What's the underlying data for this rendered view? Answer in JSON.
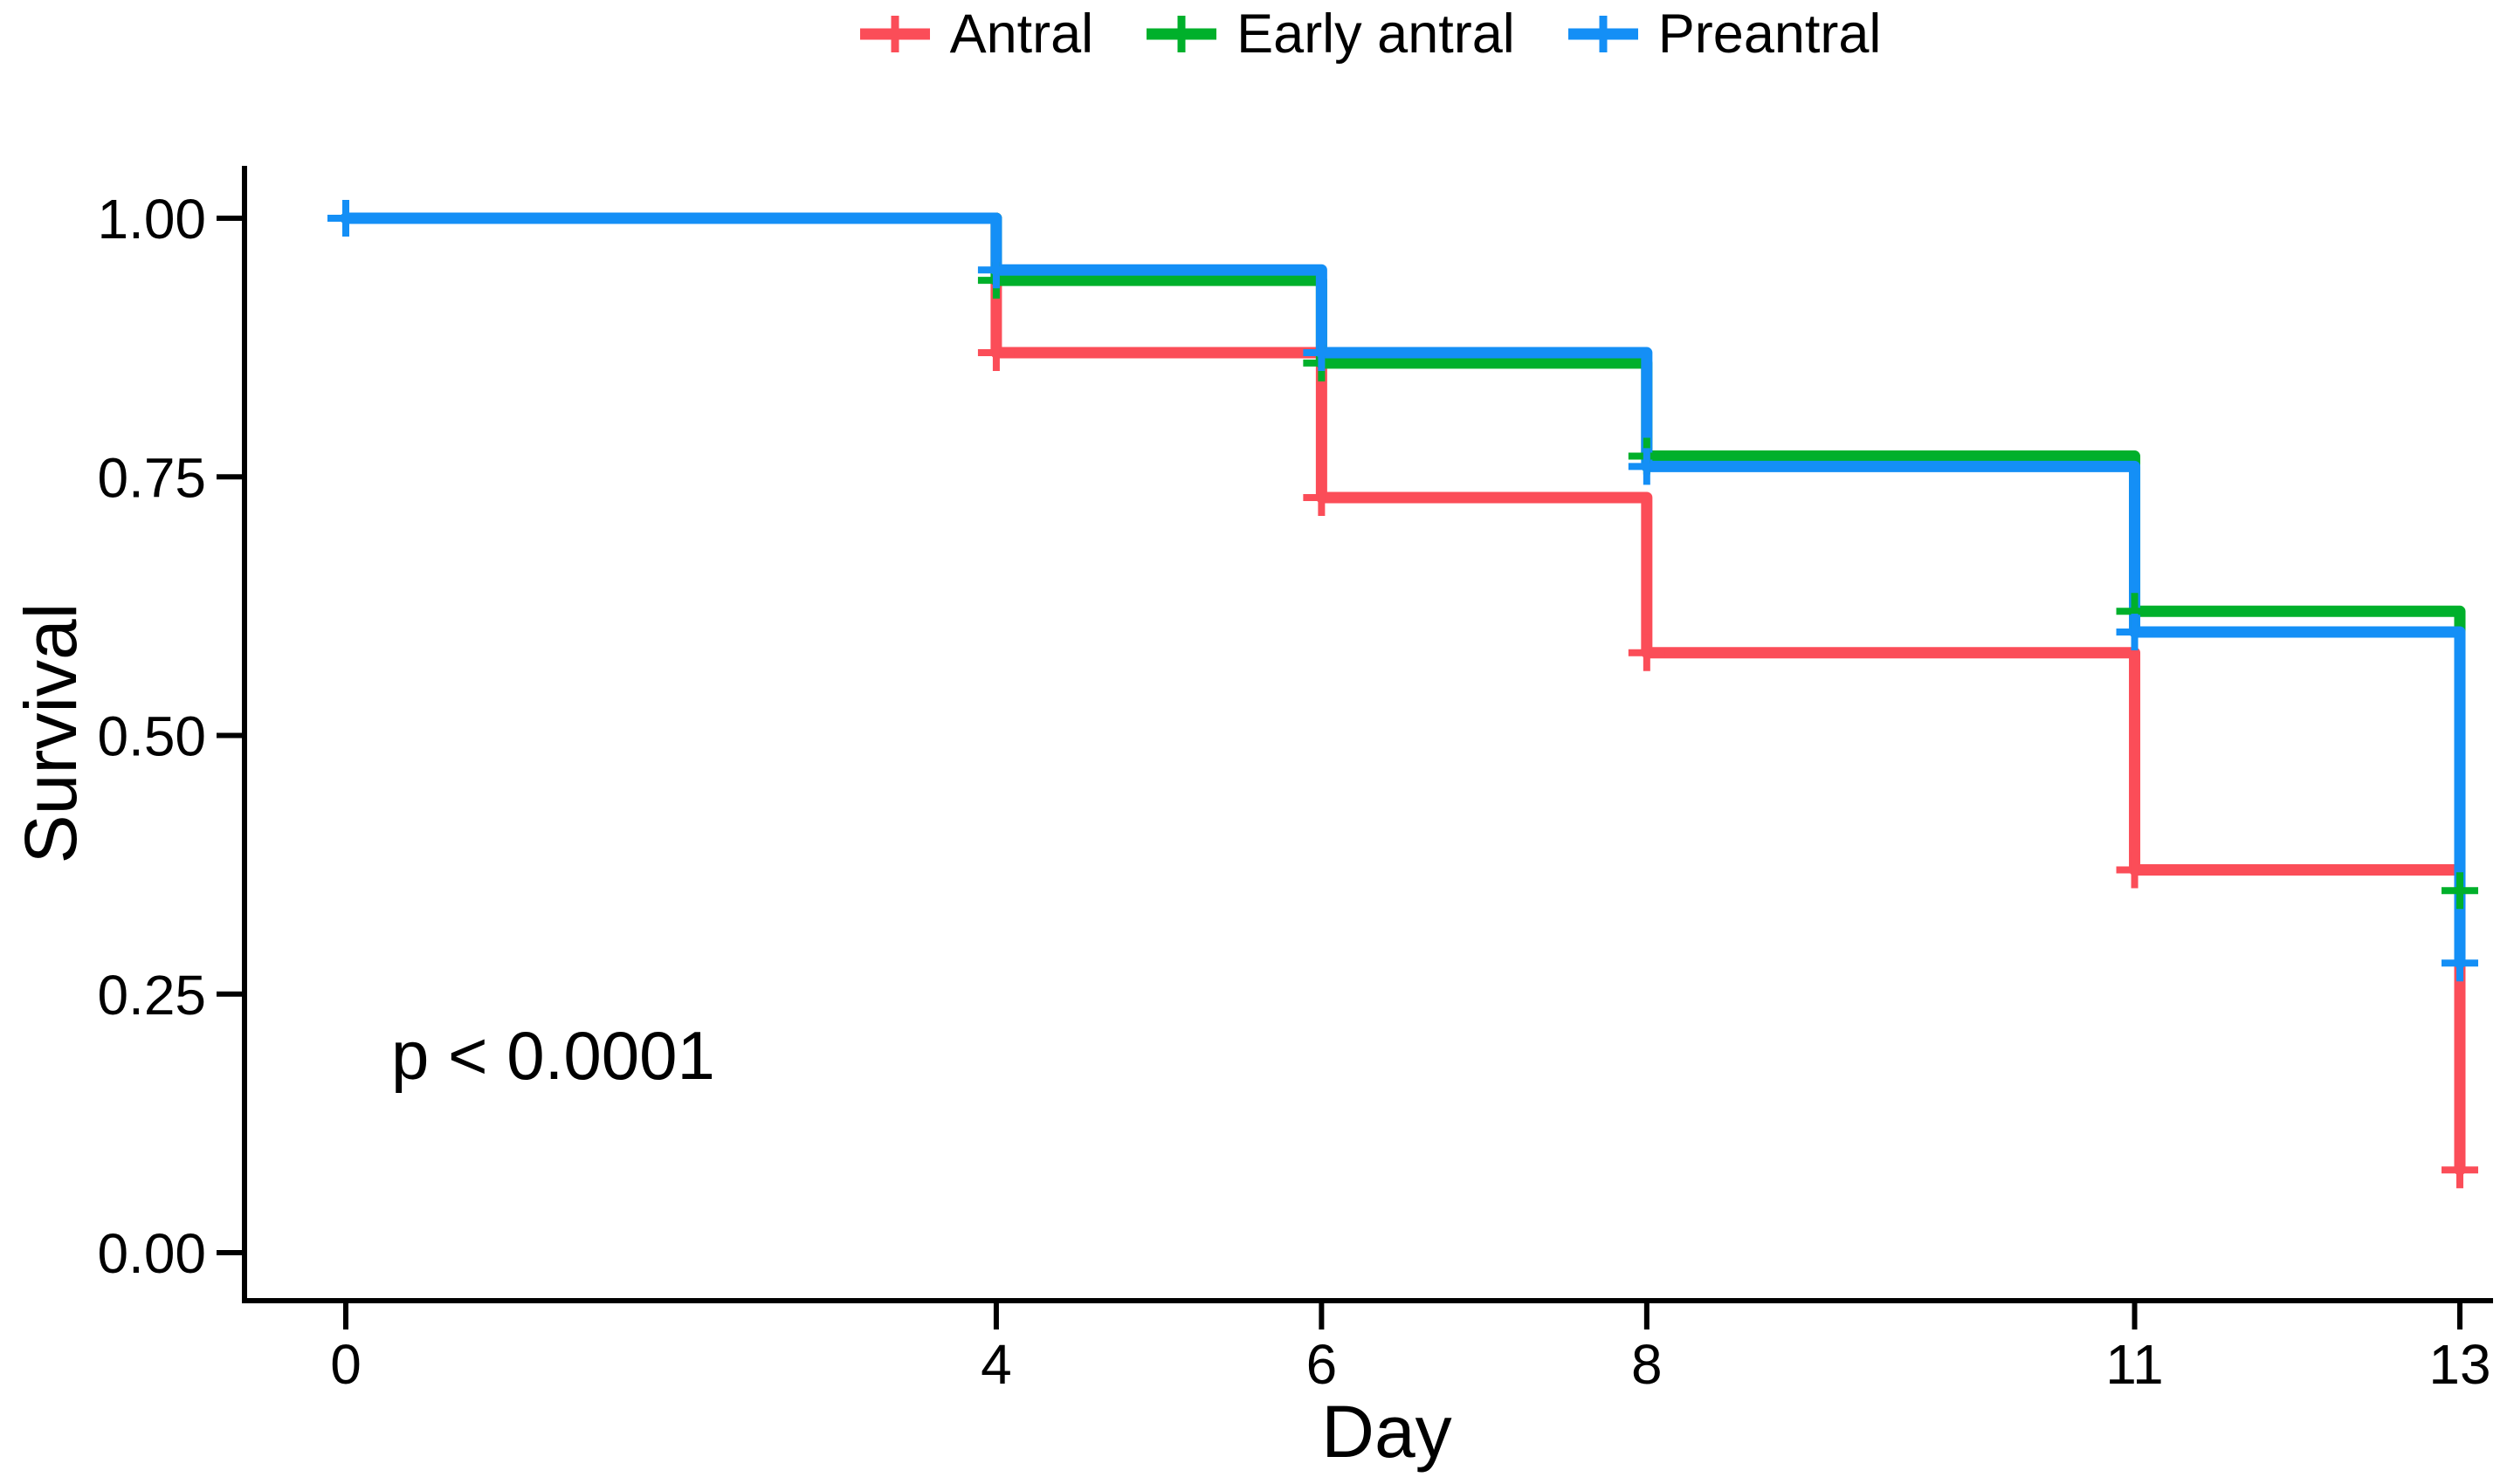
{
  "page": {
    "background": "#FFFFFF",
    "text_color": "#000000"
  },
  "chart_data": {
    "type": "line",
    "subtype": "kaplan-meier-step-survival",
    "title": "",
    "xlabel": "Day",
    "ylabel": "Survival",
    "x_tick_labels": [
      "0",
      "4",
      "6",
      "8",
      "11",
      "13"
    ],
    "x_tick_values": [
      0,
      4,
      6,
      8,
      11,
      13
    ],
    "y_tick_labels": [
      "1.00",
      "0.75",
      "0.50",
      "0.25",
      "0.00"
    ],
    "y_tick_values": [
      1.0,
      0.75,
      0.5,
      0.25,
      0.0
    ],
    "xlim": [
      0,
      13
    ],
    "ylim": [
      0,
      1
    ],
    "grid": false,
    "legend_position": "top-center",
    "axis_color": "#000000",
    "annotation": {
      "text": "p < 0.0001",
      "x_day": 0.28,
      "y_survival": 0.17
    },
    "series": [
      {
        "name": "Antral",
        "color": "#FB4D58",
        "steps": [
          [
            0,
            1.0
          ],
          [
            4,
            0.87
          ],
          [
            6,
            0.73
          ],
          [
            8,
            0.58
          ],
          [
            11,
            0.37
          ],
          [
            13,
            0.08
          ]
        ],
        "censor_marks": [
          [
            4,
            0.87
          ],
          [
            6,
            0.73
          ],
          [
            8,
            0.58
          ],
          [
            11,
            0.37
          ],
          [
            13,
            0.08
          ]
        ]
      },
      {
        "name": "Early antral",
        "color": "#00B02B",
        "steps": [
          [
            0,
            1.0
          ],
          [
            4,
            0.94
          ],
          [
            6,
            0.86
          ],
          [
            8,
            0.77
          ],
          [
            11,
            0.62
          ],
          [
            13,
            0.35
          ]
        ],
        "censor_marks": [
          [
            4,
            0.94
          ],
          [
            6,
            0.86
          ],
          [
            8,
            0.77
          ],
          [
            11,
            0.62
          ],
          [
            13,
            0.35
          ]
        ]
      },
      {
        "name": "Preantral",
        "color": "#148FF6",
        "steps": [
          [
            0,
            1.0
          ],
          [
            4,
            0.95
          ],
          [
            6,
            0.87
          ],
          [
            8,
            0.76
          ],
          [
            11,
            0.6
          ],
          [
            13,
            0.28
          ]
        ],
        "censor_marks": [
          [
            0,
            1.0
          ],
          [
            4,
            0.95
          ],
          [
            6,
            0.87
          ],
          [
            8,
            0.76
          ],
          [
            11,
            0.6
          ],
          [
            13,
            0.28
          ]
        ]
      }
    ]
  }
}
